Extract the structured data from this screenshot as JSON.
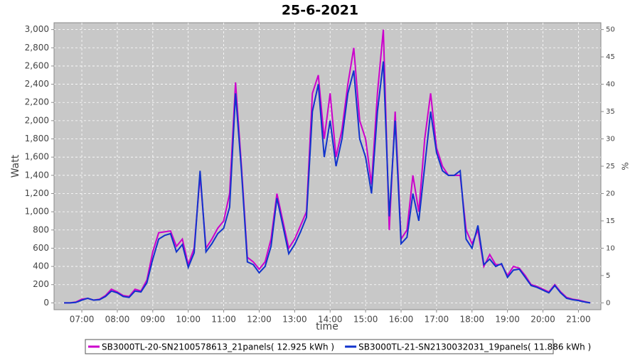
{
  "chart_data": {
    "type": "line",
    "title": "25-6-2021",
    "x_label": "time",
    "y_label": "Watt",
    "y2_label": "%",
    "x": [
      "06:30",
      "06:40",
      "06:50",
      "07:00",
      "07:10",
      "07:20",
      "07:30",
      "07:40",
      "07:50",
      "08:00",
      "08:10",
      "08:20",
      "08:30",
      "08:40",
      "08:50",
      "09:00",
      "09:10",
      "09:20",
      "09:30",
      "09:40",
      "09:50",
      "10:00",
      "10:10",
      "10:20",
      "10:30",
      "10:40",
      "10:50",
      "11:00",
      "11:10",
      "11:20",
      "11:30",
      "11:40",
      "11:50",
      "12:00",
      "12:10",
      "12:20",
      "12:30",
      "12:40",
      "12:50",
      "13:00",
      "13:10",
      "13:20",
      "13:30",
      "13:40",
      "13:50",
      "14:00",
      "14:10",
      "14:20",
      "14:30",
      "14:40",
      "14:50",
      "15:00",
      "15:10",
      "15:20",
      "15:30",
      "15:40",
      "15:50",
      "16:00",
      "16:10",
      "16:20",
      "16:30",
      "16:40",
      "16:50",
      "17:00",
      "17:10",
      "17:20",
      "17:30",
      "17:40",
      "17:50",
      "18:00",
      "18:10",
      "18:20",
      "18:30",
      "18:40",
      "18:50",
      "19:00",
      "19:10",
      "19:20",
      "19:30",
      "19:40",
      "19:50",
      "20:00",
      "20:10",
      "20:20",
      "20:30",
      "20:40",
      "20:50",
      "21:00",
      "21:10",
      "21:20"
    ],
    "series": [
      {
        "name": "SB3000TL-20-SN2100578613_21panels( 12.925 kWh )",
        "color": "#cc00cc",
        "values": [
          0,
          0,
          10,
          40,
          50,
          30,
          40,
          80,
          150,
          120,
          80,
          70,
          150,
          130,
          250,
          560,
          770,
          780,
          790,
          620,
          700,
          420,
          600,
          1400,
          600,
          700,
          820,
          900,
          1200,
          2420,
          1500,
          500,
          450,
          370,
          450,
          700,
          1200,
          900,
          600,
          700,
          850,
          1000,
          2300,
          2500,
          1800,
          2300,
          1600,
          1900,
          2400,
          2800,
          2000,
          1800,
          1300,
          2300,
          3000,
          800,
          2100,
          700,
          800,
          1400,
          1000,
          1800,
          2300,
          1700,
          1500,
          1400,
          1400,
          1400,
          800,
          650,
          800,
          400,
          530,
          420,
          420,
          300,
          400,
          380,
          300,
          200,
          180,
          150,
          120,
          200,
          120,
          60,
          40,
          30,
          15,
          0
        ]
      },
      {
        "name": "SB3000TL-21-SN2130032031_19panels( 11.886 kWh )",
        "color": "#1133cc",
        "values": [
          0,
          0,
          5,
          30,
          50,
          30,
          35,
          70,
          130,
          110,
          70,
          60,
          130,
          120,
          220,
          480,
          700,
          740,
          760,
          560,
          640,
          390,
          550,
          1450,
          560,
          650,
          760,
          820,
          1050,
          2300,
          1450,
          450,
          420,
          330,
          400,
          620,
          1150,
          850,
          540,
          640,
          780,
          940,
          2100,
          2400,
          1600,
          2000,
          1500,
          1800,
          2300,
          2550,
          1800,
          1600,
          1200,
          2100,
          2650,
          950,
          2000,
          650,
          720,
          1200,
          900,
          1500,
          2100,
          1650,
          1450,
          1400,
          1400,
          1450,
          700,
          600,
          850,
          420,
          480,
          400,
          430,
          280,
          360,
          370,
          280,
          190,
          170,
          140,
          110,
          190,
          110,
          50,
          35,
          25,
          10,
          0
        ]
      }
    ],
    "xlim": [
      "06:13",
      "21:38"
    ],
    "xticks": [
      "07:00",
      "08:00",
      "09:00",
      "10:00",
      "11:00",
      "12:00",
      "13:00",
      "14:00",
      "15:00",
      "16:00",
      "17:00",
      "18:00",
      "19:00",
      "20:00",
      "21:00"
    ],
    "ylim": [
      -75,
      3075
    ],
    "yticks": [
      0,
      200,
      400,
      600,
      800,
      {
        "value": 1000,
        "label": "1,000"
      },
      {
        "value": 1200,
        "label": "1,200"
      },
      {
        "value": 1400,
        "label": "1,400"
      },
      {
        "value": 1600,
        "label": "1,600"
      },
      {
        "value": 1800,
        "label": "1,800"
      },
      {
        "value": 2000,
        "label": "2,000"
      },
      {
        "value": 2200,
        "label": "2,200"
      },
      {
        "value": 2400,
        "label": "2,400"
      },
      {
        "value": 2600,
        "label": "2,600"
      },
      {
        "value": 2800,
        "label": "2,800"
      },
      {
        "value": 3000,
        "label": "3,000"
      }
    ],
    "y2lim": [
      -1.25,
      51.25
    ],
    "y2ticks": [
      0,
      5,
      10,
      15,
      20,
      25,
      30,
      35,
      40,
      45,
      50
    ],
    "grid": true
  }
}
